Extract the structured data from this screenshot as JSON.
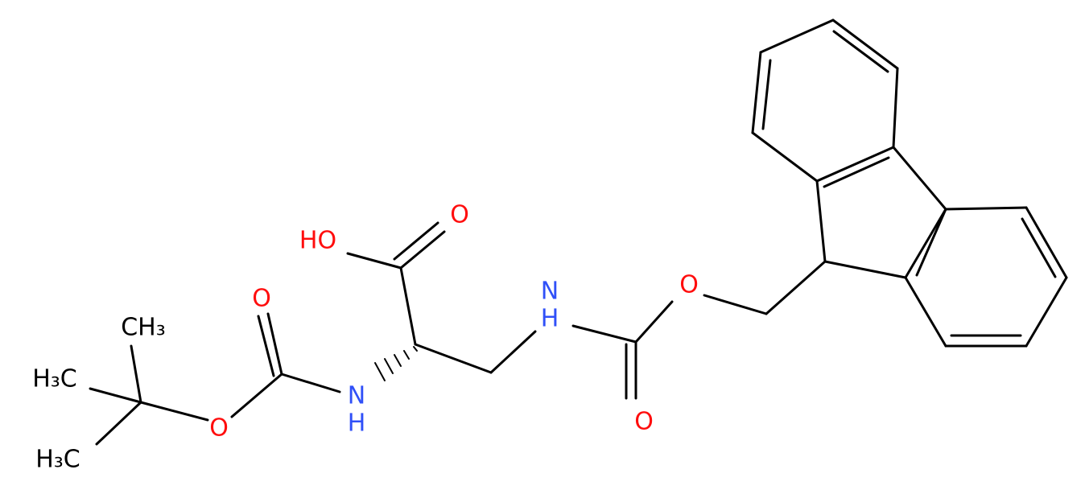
{
  "atoms": [
    {
      "label": "HO"
    },
    {
      "label": "O"
    },
    {
      "label": "O"
    },
    {
      "label": "N"
    },
    {
      "label": "H"
    },
    {
      "label": "O"
    },
    {
      "label": "CH₃"
    },
    {
      "label": "H₃C"
    },
    {
      "label": "H₃C"
    },
    {
      "label": "N"
    },
    {
      "label": "H"
    },
    {
      "label": "O"
    },
    {
      "label": "O"
    }
  ]
}
